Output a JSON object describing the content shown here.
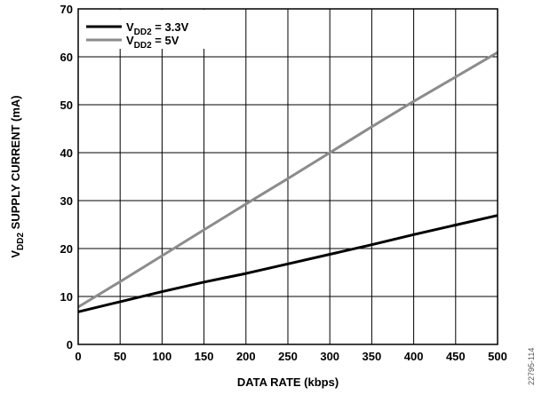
{
  "chart_data": {
    "type": "line",
    "xlabel": "DATA RATE (kbps)",
    "ylabel": {
      "prefix": "V",
      "sub": "DD2",
      "suffix": " SUPPLY CURRENT (mA)"
    },
    "xlim": [
      0,
      500
    ],
    "ylim": [
      0,
      70
    ],
    "x_ticks": [
      "0",
      "50",
      "100",
      "150",
      "200",
      "250",
      "300",
      "350",
      "400",
      "450",
      "500"
    ],
    "y_ticks": [
      "0",
      "10",
      "20",
      "30",
      "40",
      "50",
      "60",
      "70"
    ],
    "grid": true,
    "legend_position": "top-left",
    "series": [
      {
        "legend": {
          "prefix": "V",
          "sub": "DD2",
          "suffix": " = 3.3V"
        },
        "color": "#000000",
        "x": [
          0,
          50,
          100,
          150,
          200,
          250,
          300,
          350,
          400,
          450,
          500
        ],
        "y": [
          6.8,
          8.9,
          11.0,
          13.0,
          14.8,
          16.8,
          18.8,
          20.8,
          22.9,
          24.9,
          26.9
        ]
      },
      {
        "legend": {
          "prefix": "V",
          "sub": "DD2",
          "suffix": " = 5V"
        },
        "color": "#8c8c8c",
        "x": [
          0,
          50,
          100,
          150,
          200,
          250,
          300,
          350,
          400,
          450,
          500
        ],
        "y": [
          7.8,
          13.1,
          18.5,
          23.9,
          29.3,
          34.6,
          40.0,
          45.4,
          50.7,
          55.8,
          60.9
        ]
      }
    ]
  },
  "figure_id": "22795-114"
}
